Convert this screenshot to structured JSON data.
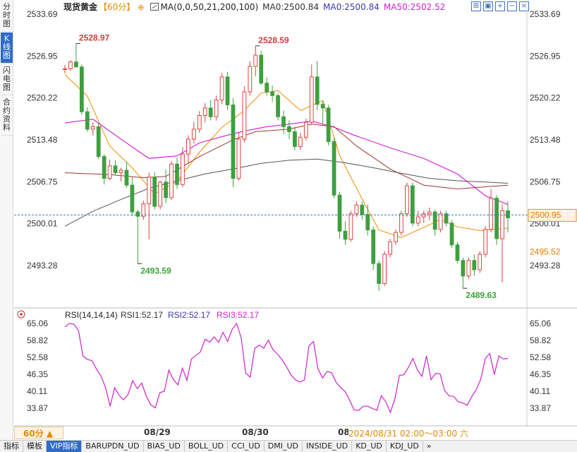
{
  "side_tabs": [
    {
      "label": "分时图",
      "active": false
    },
    {
      "label": "K线图",
      "active": true
    },
    {
      "label": "闪电图",
      "active": false
    },
    {
      "label": "合约资料",
      "active": false
    }
  ],
  "header": {
    "title": "现货黄金",
    "period": "【60分】",
    "gear": "⊕",
    "ma_params": "MA(0,0,50,21,200,100)",
    "ma0_a": "MA0:2500.84",
    "ma0_b": "MA0:2500.84",
    "ma50": "MA50:2502.52",
    "window_buttons": [
      "⊞",
      "▣",
      "+",
      "−",
      "×"
    ]
  },
  "colors": {
    "up": "#e04040",
    "down": "#3f9f3f",
    "ma_orange": "#f08c00",
    "ma_brown": "#a0342a",
    "ma_magenta": "#cc00cc",
    "ma_gray": "#555555",
    "rsi": "#cc22cc",
    "dash": "#2f7fd0"
  },
  "chart_data": {
    "type": "candlestick",
    "price_axis_ticks": [
      "2533.69",
      "2526.95",
      "2520.22",
      "2513.48",
      "2506.75",
      "2500.01",
      "2493.28"
    ],
    "ylim": [
      2493.28,
      2533.69
    ],
    "current_price": "2500.95",
    "secondary_price": "2495.52",
    "annotations": [
      {
        "label": "2528.97",
        "value": 2528.97,
        "type": "high"
      },
      {
        "label": "2528.59",
        "value": 2528.59,
        "type": "high"
      },
      {
        "label": "2493.59",
        "value": 2493.59,
        "type": "low"
      },
      {
        "label": "2489.63",
        "value": 2489.63,
        "type": "low"
      }
    ],
    "x_labels": [
      "08/29",
      "08/30",
      "08"
    ],
    "cursor_time": "2024/08/31 02:00～03:00 六",
    "candles": [
      [
        2524.8,
        2525.5,
        2524.2,
        2524.9
      ],
      [
        2524.9,
        2526.3,
        2524.6,
        2526.0
      ],
      [
        2526.0,
        2528.97,
        2525.2,
        2525.2
      ],
      [
        2525.2,
        2525.6,
        2517.5,
        2518.0
      ],
      [
        2518.0,
        2518.7,
        2514.8,
        2515.2
      ],
      [
        2515.2,
        2516.3,
        2514.2,
        2515.6
      ],
      [
        2515.6,
        2516.2,
        2510.4,
        2510.8
      ],
      [
        2510.8,
        2511.2,
        2506.3,
        2507.3
      ],
      [
        2507.3,
        2510.3,
        2507.0,
        2509.3
      ],
      [
        2509.3,
        2510.2,
        2507.8,
        2508.2
      ],
      [
        2508.2,
        2509.0,
        2506.8,
        2508.6
      ],
      [
        2508.6,
        2510.0,
        2505.8,
        2506.2
      ],
      [
        2506.2,
        2507.6,
        2501.2,
        2501.9
      ],
      [
        2501.9,
        2502.3,
        2493.59,
        2501.2
      ],
      [
        2501.2,
        2503.7,
        2500.6,
        2503.2
      ],
      [
        2503.2,
        2508.2,
        2497.5,
        2507.5
      ],
      [
        2507.5,
        2508.3,
        2502.3,
        2502.8
      ],
      [
        2502.8,
        2506.9,
        2502.3,
        2506.7
      ],
      [
        2506.7,
        2508.7,
        2503.3,
        2504.2
      ],
      [
        2504.2,
        2510.1,
        2503.8,
        2509.6
      ],
      [
        2509.6,
        2510.6,
        2505.6,
        2506.3
      ],
      [
        2506.3,
        2512.3,
        2505.9,
        2511.2
      ],
      [
        2511.2,
        2514.2,
        2509.6,
        2513.6
      ],
      [
        2513.6,
        2516.4,
        2512.9,
        2515.2
      ],
      [
        2515.2,
        2518.1,
        2514.6,
        2517.4
      ],
      [
        2517.4,
        2519.4,
        2516.3,
        2518.6
      ],
      [
        2518.6,
        2519.9,
        2516.6,
        2517.2
      ],
      [
        2517.2,
        2520.6,
        2516.6,
        2519.9
      ],
      [
        2519.9,
        2524.2,
        2519.2,
        2523.6
      ],
      [
        2523.6,
        2524.4,
        2518.3,
        2519.1
      ],
      [
        2519.1,
        2520.2,
        2505.9,
        2507.3
      ],
      [
        2507.3,
        2514.6,
        2506.9,
        2513.6
      ],
      [
        2513.6,
        2522.1,
        2513.1,
        2521.2
      ],
      [
        2521.2,
        2526.1,
        2520.6,
        2525.3
      ],
      [
        2525.3,
        2528.59,
        2523.7,
        2527.1
      ],
      [
        2527.1,
        2527.8,
        2522.3,
        2522.6
      ],
      [
        2522.6,
        2523.5,
        2520.6,
        2521.2
      ],
      [
        2521.2,
        2522.2,
        2519.6,
        2520.6
      ],
      [
        2520.6,
        2521.0,
        2516.6,
        2517.2
      ],
      [
        2517.2,
        2518.2,
        2514.4,
        2515.6
      ],
      [
        2515.6,
        2516.6,
        2513.6,
        2514.8
      ],
      [
        2514.8,
        2515.6,
        2511.8,
        2512.4
      ],
      [
        2512.4,
        2514.6,
        2511.9,
        2513.9
      ],
      [
        2513.9,
        2516.9,
        2513.4,
        2516.3
      ],
      [
        2516.3,
        2525.6,
        2515.9,
        2523.6
      ],
      [
        2523.6,
        2526.1,
        2518.2,
        2519.2
      ],
      [
        2519.2,
        2519.8,
        2516.1,
        2518.6
      ],
      [
        2518.6,
        2519.1,
        2512.6,
        2513.2
      ],
      [
        2513.2,
        2513.8,
        2504.1,
        2504.6
      ],
      [
        2504.6,
        2505.1,
        2497.6,
        2498.8
      ],
      [
        2498.8,
        2500.4,
        2496.6,
        2497.5
      ],
      [
        2497.5,
        2502.1,
        2497.1,
        2501.6
      ],
      [
        2501.6,
        2503.6,
        2501.1,
        2503.0
      ],
      [
        2503.0,
        2503.6,
        2500.6,
        2501.5
      ],
      [
        2501.5,
        2503.1,
        2498.1,
        2499.0
      ],
      [
        2499.0,
        2499.6,
        2492.6,
        2493.6
      ],
      [
        2493.6,
        2494.1,
        2489.2,
        2490.4
      ],
      [
        2490.4,
        2495.6,
        2490.0,
        2495.1
      ],
      [
        2495.1,
        2497.6,
        2494.6,
        2497.1
      ],
      [
        2497.1,
        2499.1,
        2496.6,
        2498.6
      ],
      [
        2498.6,
        2502.1,
        2498.1,
        2501.6
      ],
      [
        2501.6,
        2506.6,
        2501.1,
        2506.1
      ],
      [
        2506.1,
        2506.6,
        2499.6,
        2500.1
      ],
      [
        2500.1,
        2502.1,
        2499.6,
        2501.1
      ],
      [
        2501.1,
        2502.1,
        2500.1,
        2501.6
      ],
      [
        2501.6,
        2502.6,
        2500.6,
        2501.9
      ],
      [
        2501.9,
        2502.3,
        2498.1,
        2499.1
      ],
      [
        2499.1,
        2502.1,
        2498.6,
        2501.6
      ],
      [
        2501.6,
        2502.1,
        2499.6,
        2500.1
      ],
      [
        2500.1,
        2500.6,
        2496.1,
        2496.6
      ],
      [
        2496.6,
        2497.1,
        2493.6,
        2494.1
      ],
      [
        2494.1,
        2494.6,
        2489.63,
        2491.6
      ],
      [
        2491.6,
        2494.6,
        2491.1,
        2494.1
      ],
      [
        2494.1,
        2495.1,
        2491.6,
        2492.6
      ],
      [
        2492.6,
        2495.6,
        2492.1,
        2495.1
      ],
      [
        2495.1,
        2499.6,
        2494.6,
        2499.1
      ],
      [
        2499.1,
        2505.6,
        2498.6,
        2504.1
      ],
      [
        2504.1,
        2504.6,
        2496.6,
        2497.6
      ],
      [
        2497.6,
        2503.1,
        2490.6,
        2502.1
      ],
      [
        2502.1,
        2503.6,
        2498.6,
        2500.95
      ]
    ],
    "ma_series": [
      {
        "color_key": "ma_orange",
        "values": [
          [
            0,
            2524.0
          ],
          [
            4,
            2520.5
          ],
          [
            8,
            2512.5
          ],
          [
            12,
            2509.0
          ],
          [
            16,
            2504.8
          ],
          [
            20,
            2506.8
          ],
          [
            24,
            2511.5
          ],
          [
            28,
            2515.5
          ],
          [
            32,
            2518.2
          ],
          [
            35,
            2521.0
          ],
          [
            38,
            2521.4
          ],
          [
            42,
            2518.2
          ],
          [
            46,
            2519.8
          ],
          [
            49,
            2511.0
          ],
          [
            53,
            2504.0
          ],
          [
            56,
            2499.0
          ],
          [
            60,
            2497.8
          ],
          [
            64,
            2499.4
          ],
          [
            67,
            2500.7
          ],
          [
            70,
            2499.5
          ],
          [
            74,
            2498.9
          ],
          [
            79,
            2499.3
          ]
        ]
      },
      {
        "color_key": "ma_brown",
        "values": [
          [
            0,
            2508.2
          ],
          [
            8,
            2507.9
          ],
          [
            14,
            2507.4
          ],
          [
            18,
            2507.6
          ],
          [
            24,
            2510.8
          ],
          [
            30,
            2513.5
          ],
          [
            34,
            2514.8
          ],
          [
            40,
            2515.2
          ],
          [
            44,
            2516.0
          ],
          [
            48,
            2515.6
          ],
          [
            52,
            2512.5
          ],
          [
            58,
            2508.8
          ],
          [
            64,
            2506.2
          ],
          [
            70,
            2505.6
          ],
          [
            76,
            2506.0
          ],
          [
            79,
            2506.2
          ]
        ]
      },
      {
        "color_key": "ma_magenta",
        "values": [
          [
            0,
            2516.2
          ],
          [
            5,
            2516.8
          ],
          [
            10,
            2513.6
          ],
          [
            15,
            2510.5
          ],
          [
            20,
            2510.9
          ],
          [
            24,
            2513.0
          ],
          [
            28,
            2514.0
          ],
          [
            32,
            2514.9
          ],
          [
            36,
            2515.6
          ],
          [
            40,
            2516.0
          ],
          [
            44,
            2516.5
          ],
          [
            48,
            2515.5
          ],
          [
            52,
            2514.1
          ],
          [
            58,
            2512.2
          ],
          [
            64,
            2510.5
          ],
          [
            70,
            2508.0
          ],
          [
            75,
            2504.5
          ],
          [
            79,
            2503.1
          ]
        ]
      },
      {
        "color_key": "ma_gray",
        "values": [
          [
            0,
            2499.6
          ],
          [
            5,
            2502.0
          ],
          [
            10,
            2503.9
          ],
          [
            15,
            2505.7
          ],
          [
            20,
            2506.9
          ],
          [
            25,
            2508.0
          ],
          [
            30,
            2508.8
          ],
          [
            35,
            2509.7
          ],
          [
            40,
            2510.2
          ],
          [
            45,
            2510.4
          ],
          [
            50,
            2509.8
          ],
          [
            55,
            2509.0
          ],
          [
            60,
            2508.1
          ],
          [
            65,
            2507.3
          ],
          [
            70,
            2506.9
          ],
          [
            75,
            2506.7
          ],
          [
            79,
            2506.5
          ]
        ]
      }
    ],
    "rsi": {
      "label": "RSI(14,14,14)",
      "rsi1": "RSI1:52.17",
      "rsi2": "RSI2:52.17",
      "rsi3": "RSI3:52.17",
      "ylim": [
        33.87,
        65.06
      ],
      "axis_ticks": [
        "65.06",
        "58.82",
        "52.58",
        "46.35",
        "40.11",
        "33.87"
      ],
      "values": [
        63.8,
        65.1,
        64.8,
        62.5,
        53.1,
        51.8,
        51.4,
        48.2,
        45.7,
        41.4,
        34.6,
        41.4,
        38.6,
        37.0,
        39.0,
        44.0,
        41.1,
        43.1,
        38.4,
        35.1,
        34.0,
        39.6,
        40.1,
        47.9,
        44.4,
        42.5,
        48.6,
        44.1,
        52.0,
        53.3,
        54.6,
        59.3,
        58.2,
        60.1,
        58.1,
        61.8,
        58.4,
        62.9,
        65.1,
        59.8,
        46.8,
        45.3,
        55.9,
        57.1,
        56.0,
        58.9,
        55.5,
        53.8,
        51.8,
        49.2,
        46.2,
        44.3,
        43.5,
        44.3,
        56.8,
        58.4,
        48.3,
        45.0,
        47.4,
        46.9,
        43.4,
        41.5,
        40.0,
        36.8,
        33.2,
        33.1,
        34.6,
        34.6,
        33.8,
        33.1,
        38.5,
        36.2,
        32.3,
        37.3,
        45.9,
        46.2,
        48.9,
        52.2,
        47.9,
        45.6,
        53.1,
        44.4,
        46.7,
        46.5,
        40.4,
        38.4,
        38.2,
        36.2,
        35.8,
        35.0,
        38.1,
        40.7,
        44.6,
        52.2,
        54.0,
        46.3,
        53.1,
        52.0,
        52.2
      ]
    }
  },
  "bottom": {
    "period_label": "60分 ▲",
    "tabs": [
      {
        "label": "指标",
        "active": false
      },
      {
        "label": "模板",
        "active": false
      },
      {
        "label": "VIP指标",
        "active": true
      },
      {
        "label": "BARUPDN_UD",
        "active": false
      },
      {
        "label": "BIAS_UD",
        "active": false
      },
      {
        "label": "BOLL_UD",
        "active": false
      },
      {
        "label": "CCI_UD",
        "active": false
      },
      {
        "label": "DMI_UD",
        "active": false
      },
      {
        "label": "INSIDE_UD",
        "active": false
      },
      {
        "label": "KD_UD",
        "active": false
      },
      {
        "label": "KDJ_UD",
        "active": false
      },
      {
        "label": "»",
        "active": false
      }
    ]
  }
}
